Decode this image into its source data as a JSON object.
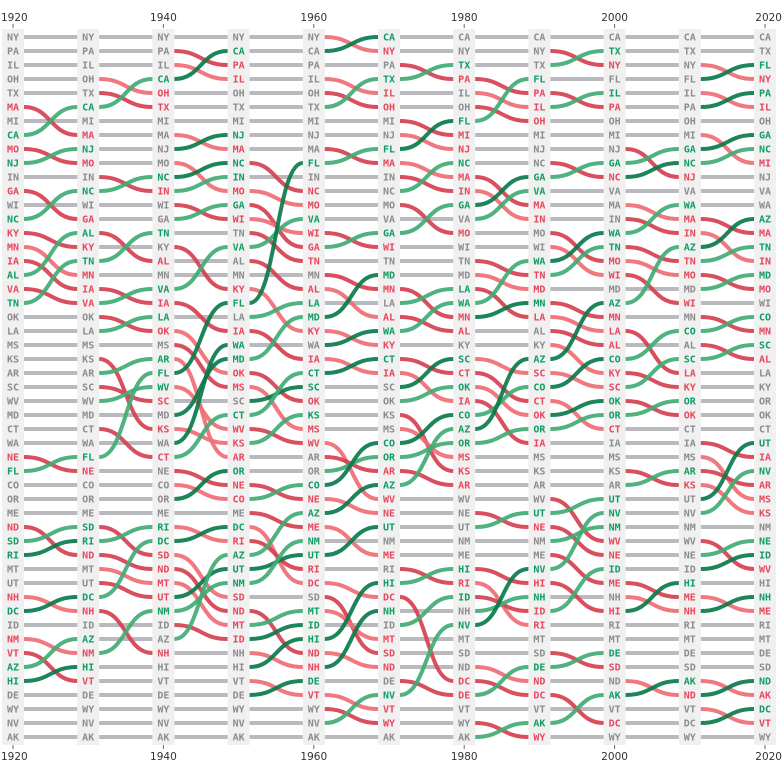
{
  "chart_data": {
    "type": "bump",
    "title": "",
    "xlabel": "",
    "ylabel": "",
    "years": [
      1920,
      1930,
      1940,
      1950,
      1960,
      1970,
      1980,
      1990,
      2000,
      2010,
      2020
    ],
    "tick_labels": [
      "1920",
      "1940",
      "1960",
      "1980",
      "2000",
      "2020"
    ],
    "y_order": "rank 1 at top, rank 51 at bottom",
    "colors": {
      "up": "#0f9d63",
      "down": "#e8475c",
      "same": "#8c8c8c",
      "line_same": "#b9b9be",
      "up_line_dark": "#0b7a4b",
      "up_line_light": "#41ab74",
      "down_line_dark": "#d5404f",
      "down_line_light": "#ef6e74",
      "label_bg": "#f0f0f0"
    },
    "rankings": {
      "1920": [
        "NY",
        "PA",
        "IL",
        "OH",
        "TX",
        "MA",
        "MI",
        "CA",
        "MO",
        "NJ",
        "IN",
        "GA",
        "WI",
        "NC",
        "KY",
        "MN",
        "IA",
        "AL",
        "VA",
        "TN",
        "OK",
        "LA",
        "MS",
        "KS",
        "AR",
        "SC",
        "WV",
        "MD",
        "CT",
        "WA",
        "NE",
        "FL",
        "CO",
        "OR",
        "ME",
        "ND",
        "SD",
        "RI",
        "MT",
        "UT",
        "NH",
        "DC",
        "ID",
        "NM",
        "VT",
        "AZ",
        "HI",
        "DE",
        "WY",
        "NV",
        "AK"
      ],
      "1930": [
        "NY",
        "PA",
        "IL",
        "OH",
        "TX",
        "CA",
        "MI",
        "MA",
        "NJ",
        "MO",
        "IN",
        "NC",
        "WI",
        "GA",
        "AL",
        "KY",
        "TN",
        "MN",
        "IA",
        "VA",
        "OK",
        "LA",
        "MS",
        "KS",
        "AR",
        "SC",
        "WV",
        "MD",
        "CT",
        "WA",
        "FL",
        "NE",
        "CO",
        "OR",
        "ME",
        "SD",
        "RI",
        "ND",
        "MT",
        "UT",
        "DC",
        "NH",
        "ID",
        "AZ",
        "NM",
        "HI",
        "VT",
        "DE",
        "WY",
        "NV",
        "AK"
      ],
      "1940": [
        "NY",
        "PA",
        "IL",
        "CA",
        "OH",
        "TX",
        "MI",
        "MA",
        "NJ",
        "MO",
        "NC",
        "IN",
        "WI",
        "GA",
        "TN",
        "KY",
        "AL",
        "MN",
        "VA",
        "IA",
        "LA",
        "OK",
        "MS",
        "AR",
        "FL",
        "WV",
        "SC",
        "MD",
        "KS",
        "WA",
        "CT",
        "NE",
        "CO",
        "OR",
        "ME",
        "RI",
        "DC",
        "SD",
        "ND",
        "MT",
        "UT",
        "NM",
        "ID",
        "AZ",
        "NH",
        "HI",
        "VT",
        "DE",
        "WY",
        "NV",
        "AK"
      ],
      "1950": [
        "NY",
        "CA",
        "PA",
        "IL",
        "OH",
        "TX",
        "MI",
        "NJ",
        "MA",
        "NC",
        "IN",
        "MO",
        "GA",
        "WI",
        "TN",
        "VA",
        "AL",
        "MN",
        "KY",
        "FL",
        "LA",
        "IA",
        "WA",
        "MD",
        "OK",
        "MS",
        "SC",
        "CT",
        "WV",
        "KS",
        "AR",
        "OR",
        "NE",
        "CO",
        "ME",
        "DC",
        "RI",
        "AZ",
        "UT",
        "NM",
        "SD",
        "ND",
        "MT",
        "ID",
        "NH",
        "HI",
        "VT",
        "DE",
        "WY",
        "NV",
        "AK"
      ],
      "1960": [
        "NY",
        "CA",
        "PA",
        "IL",
        "OH",
        "TX",
        "MI",
        "NJ",
        "MA",
        "FL",
        "IN",
        "NC",
        "MO",
        "VA",
        "WI",
        "GA",
        "TN",
        "MN",
        "AL",
        "LA",
        "MD",
        "KY",
        "WA",
        "IA",
        "CT",
        "SC",
        "OK",
        "KS",
        "MS",
        "WV",
        "AR",
        "OR",
        "CO",
        "NE",
        "AZ",
        "ME",
        "NM",
        "UT",
        "RI",
        "DC",
        "SD",
        "MT",
        "ID",
        "HI",
        "ND",
        "NH",
        "DE",
        "VT",
        "WY",
        "NV",
        "AK"
      ],
      "1970": [
        "CA",
        "NY",
        "PA",
        "TX",
        "IL",
        "OH",
        "MI",
        "NJ",
        "FL",
        "MA",
        "IN",
        "NC",
        "MO",
        "VA",
        "GA",
        "WI",
        "TN",
        "MD",
        "MN",
        "LA",
        "AL",
        "WA",
        "KY",
        "CT",
        "IA",
        "SC",
        "OK",
        "KS",
        "MS",
        "CO",
        "OR",
        "AR",
        "AZ",
        "WV",
        "NE",
        "UT",
        "NM",
        "ME",
        "RI",
        "HI",
        "DC",
        "NH",
        "ID",
        "MT",
        "SD",
        "ND",
        "DE",
        "NV",
        "VT",
        "WY",
        "AK"
      ],
      "1980": [
        "CA",
        "NY",
        "TX",
        "PA",
        "IL",
        "OH",
        "FL",
        "MI",
        "NJ",
        "NC",
        "MA",
        "IN",
        "GA",
        "VA",
        "MO",
        "WI",
        "TN",
        "MD",
        "LA",
        "WA",
        "MN",
        "AL",
        "KY",
        "SC",
        "CT",
        "OK",
        "IA",
        "CO",
        "AZ",
        "OR",
        "MS",
        "KS",
        "AR",
        "WV",
        "NE",
        "UT",
        "NM",
        "ME",
        "HI",
        "RI",
        "ID",
        "NH",
        "NV",
        "MT",
        "SD",
        "ND",
        "DC",
        "DE",
        "VT",
        "WY",
        "AK"
      ],
      "1990": [
        "CA",
        "NY",
        "TX",
        "FL",
        "PA",
        "IL",
        "OH",
        "MI",
        "NJ",
        "NC",
        "GA",
        "VA",
        "MA",
        "IN",
        "MO",
        "WI",
        "WA",
        "TN",
        "MD",
        "MN",
        "LA",
        "AL",
        "KY",
        "AZ",
        "SC",
        "CO",
        "CT",
        "OK",
        "OR",
        "IA",
        "MS",
        "KS",
        "AR",
        "WV",
        "UT",
        "NE",
        "NM",
        "ME",
        "NV",
        "HI",
        "NH",
        "ID",
        "RI",
        "MT",
        "SD",
        "DE",
        "ND",
        "DC",
        "VT",
        "AK",
        "WY"
      ],
      "2000": [
        "CA",
        "TX",
        "NY",
        "FL",
        "IL",
        "PA",
        "OH",
        "MI",
        "NJ",
        "GA",
        "NC",
        "VA",
        "MA",
        "IN",
        "WA",
        "TN",
        "MO",
        "WI",
        "MD",
        "AZ",
        "MN",
        "LA",
        "AL",
        "CO",
        "KY",
        "SC",
        "OK",
        "OR",
        "CT",
        "IA",
        "MS",
        "KS",
        "AR",
        "UT",
        "NV",
        "NM",
        "WV",
        "NE",
        "ID",
        "ME",
        "NH",
        "HI",
        "RI",
        "MT",
        "DE",
        "SD",
        "ND",
        "AK",
        "VT",
        "DC",
        "WY"
      ],
      "2010": [
        "CA",
        "TX",
        "NY",
        "FL",
        "IL",
        "PA",
        "OH",
        "MI",
        "GA",
        "NC",
        "NJ",
        "VA",
        "WA",
        "MA",
        "IN",
        "AZ",
        "TN",
        "MO",
        "MD",
        "WI",
        "MN",
        "CO",
        "AL",
        "SC",
        "LA",
        "KY",
        "OR",
        "OK",
        "CT",
        "IA",
        "MS",
        "AR",
        "KS",
        "UT",
        "NV",
        "NM",
        "WV",
        "NE",
        "ID",
        "HI",
        "ME",
        "NH",
        "RI",
        "MT",
        "DE",
        "SD",
        "AK",
        "ND",
        "VT",
        "DC",
        "WY"
      ],
      "2020": [
        "CA",
        "TX",
        "FL",
        "NY",
        "PA",
        "IL",
        "OH",
        "GA",
        "NC",
        "MI",
        "NJ",
        "VA",
        "WA",
        "AZ",
        "MA",
        "TN",
        "IN",
        "MD",
        "MO",
        "WI",
        "CO",
        "MN",
        "SC",
        "AL",
        "LA",
        "KY",
        "OR",
        "OK",
        "CT",
        "UT",
        "IA",
        "NV",
        "AR",
        "MS",
        "KS",
        "NM",
        "NE",
        "ID",
        "WV",
        "HI",
        "NH",
        "ME",
        "RI",
        "MT",
        "DE",
        "SD",
        "ND",
        "AK",
        "DC",
        "VT",
        "WY"
      ]
    }
  }
}
